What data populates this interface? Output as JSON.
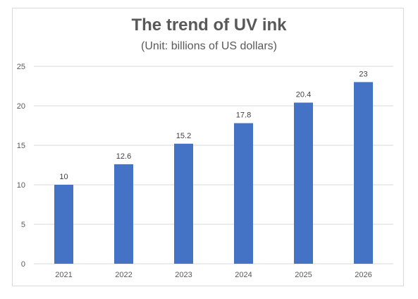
{
  "chart_data": {
    "type": "bar",
    "title": "The trend of UV ink",
    "subtitle": "(Unit: billions of US dollars)",
    "categories": [
      "2021",
      "2022",
      "2023",
      "2024",
      "2025",
      "2026"
    ],
    "values": [
      10,
      12.6,
      15.2,
      17.8,
      20.4,
      23
    ],
    "data_labels": [
      "10",
      "12.6",
      "15.2",
      "17.8",
      "20.4",
      "23"
    ],
    "ylim": [
      0,
      25
    ],
    "yticks": [
      0,
      5,
      10,
      15,
      20,
      25
    ],
    "xlabel": "",
    "ylabel": "",
    "grid": true,
    "legend": "none",
    "bar_color": "#4472c4",
    "grid_color": "#d9d9d9"
  }
}
